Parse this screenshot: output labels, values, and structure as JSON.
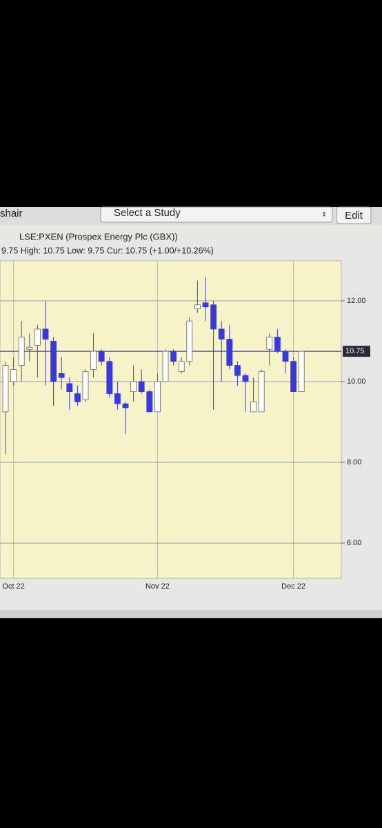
{
  "toolbar": {
    "user": "shair",
    "study": "Select a Study",
    "edit": "Edit"
  },
  "chart_data": {
    "type": "candlestick",
    "title": "LSE:PXEN (Prospex Energy Plc (GBX))",
    "subtitle": "9.75 High: 10.75 Low: 9.75 Cur: 10.75 (+1.00/+10.26%)",
    "categories": [
      null,
      "Oct 22",
      null,
      null,
      null,
      null,
      null,
      null,
      null,
      null,
      null,
      null,
      null,
      null,
      null,
      null,
      null,
      null,
      null,
      "Nov 22",
      null,
      null,
      null,
      null,
      null,
      null,
      null,
      null,
      null,
      null,
      null,
      null,
      null,
      null,
      null,
      null,
      "Dec 22",
      null
    ],
    "open": [
      9.25,
      10.0,
      10.4,
      10.8,
      10.9,
      11.3,
      11.0,
      10.2,
      9.95,
      9.7,
      9.55,
      10.3,
      10.75,
      10.5,
      9.7,
      9.45,
      9.75,
      10.0,
      9.75,
      9.25,
      10.0,
      10.75,
      10.25,
      10.5,
      11.8,
      11.95,
      11.9,
      11.3,
      11.05,
      10.4,
      10.15,
      9.25,
      9.25,
      10.8,
      11.1,
      10.75,
      10.5,
      9.75
    ],
    "high": [
      10.5,
      10.6,
      11.5,
      11.2,
      11.4,
      12.0,
      11.1,
      10.6,
      10.1,
      9.9,
      10.3,
      11.2,
      10.8,
      10.6,
      10.0,
      9.5,
      10.4,
      10.3,
      9.8,
      10.2,
      10.8,
      10.8,
      10.6,
      11.6,
      12.5,
      12.6,
      12.0,
      11.5,
      11.4,
      10.5,
      10.2,
      10.1,
      10.3,
      11.2,
      11.3,
      10.8,
      10.6,
      10.75
    ],
    "low": [
      8.2,
      9.9,
      10.0,
      10.5,
      10.1,
      9.9,
      9.4,
      9.8,
      9.3,
      9.4,
      9.5,
      10.1,
      10.4,
      9.6,
      9.3,
      8.7,
      9.5,
      9.7,
      9.25,
      9.25,
      10.0,
      10.4,
      10.2,
      10.4,
      11.7,
      11.5,
      9.3,
      10.0,
      10.3,
      9.9,
      9.25,
      9.25,
      9.25,
      10.4,
      10.7,
      10.2,
      9.75,
      9.75
    ],
    "close": [
      10.4,
      10.3,
      11.1,
      10.85,
      11.3,
      11.05,
      10.0,
      10.1,
      9.75,
      9.5,
      10.25,
      10.75,
      10.5,
      9.7,
      9.45,
      9.35,
      10.0,
      9.75,
      9.25,
      10.0,
      10.75,
      10.5,
      10.5,
      11.5,
      11.9,
      11.85,
      11.3,
      11.05,
      10.4,
      10.15,
      10.0,
      9.5,
      10.25,
      11.1,
      10.75,
      10.5,
      9.75,
      10.75
    ],
    "up_color": "#ffffff",
    "down_color": "#3838e0",
    "current": 10.75,
    "ylim": [
      5.13,
      12.99
    ],
    "yticks": [
      {
        "value": 6,
        "label": "6.00"
      },
      {
        "value": 8,
        "label": "8.00"
      },
      {
        "value": 10,
        "label": "10.00"
      },
      {
        "value": 12,
        "label": "12.00"
      }
    ],
    "grid": true
  }
}
